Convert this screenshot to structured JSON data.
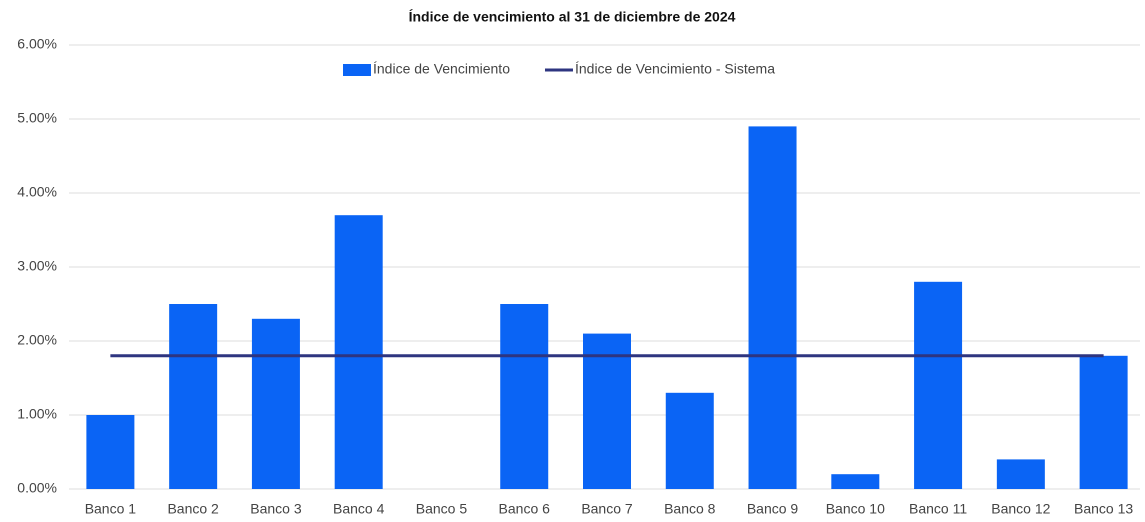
{
  "chart_data": {
    "type": "bar",
    "title": "Índice de vencimiento al 31 de diciembre de 2024",
    "categories": [
      "Banco 1",
      "Banco 2",
      "Banco 3",
      "Banco 4",
      "Banco 5",
      "Banco 6",
      "Banco 7",
      "Banco 8",
      "Banco 9",
      "Banco 10",
      "Banco 11",
      "Banco 12",
      "Banco 13"
    ],
    "series": [
      {
        "name": "Índice de Vencimiento",
        "type": "bar",
        "color": "#0a64f5",
        "values": [
          1.0,
          2.5,
          2.3,
          3.7,
          0,
          2.5,
          2.1,
          1.3,
          4.9,
          0.2,
          2.8,
          0.4,
          1.8
        ]
      },
      {
        "name": "Índice de Vencimiento - Sistema",
        "type": "line",
        "color": "#2e3580",
        "values": [
          1.8,
          1.8,
          1.8,
          1.8,
          1.8,
          1.8,
          1.8,
          1.8,
          1.8,
          1.8,
          1.8,
          1.8,
          1.8
        ]
      }
    ],
    "ylim": [
      0,
      6
    ],
    "yticks": [
      {
        "value": 0,
        "label": "0.00%"
      },
      {
        "value": 1,
        "label": "1.00%"
      },
      {
        "value": 2,
        "label": "2.00%"
      },
      {
        "value": 3,
        "label": "3.00%"
      },
      {
        "value": 4,
        "label": "4.00%"
      },
      {
        "value": 5,
        "label": "5.00%"
      },
      {
        "value": 6,
        "label": "6.00%"
      }
    ],
    "grid": true,
    "legend": "top"
  }
}
